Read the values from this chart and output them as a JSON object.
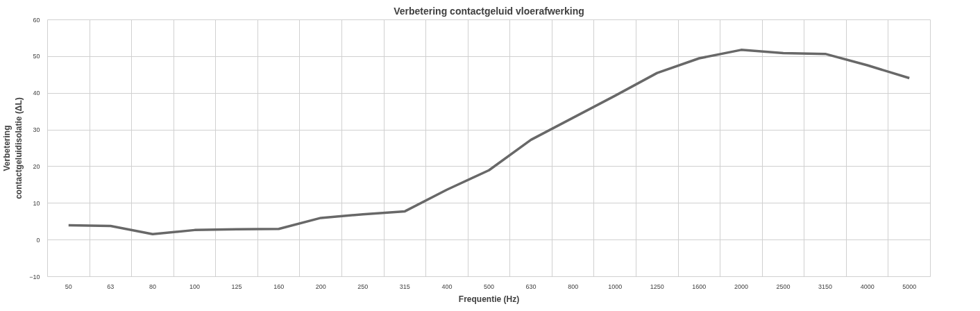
{
  "chart_data": {
    "type": "line",
    "title": "Verbetering contactgeluid vloerafwerking",
    "xlabel": "Frequentie (Hz)",
    "ylabel": "Verbetering contactgeluidisolatie (ΔL)",
    "categories": [
      "50",
      "63",
      "80",
      "100",
      "125",
      "160",
      "200",
      "250",
      "315",
      "400",
      "500",
      "630",
      "800",
      "1000",
      "1250",
      "1600",
      "2000",
      "2500",
      "3150",
      "4000",
      "5000"
    ],
    "series": [
      {
        "color": "#686868",
        "values": [
          4.0,
          3.8,
          1.6,
          2.7,
          2.9,
          3.0,
          6.0,
          7.0,
          7.8,
          13.7,
          19.0,
          27.3,
          33.3,
          39.3,
          45.5,
          49.5,
          51.8,
          50.9,
          50.7,
          47.6,
          44.1
        ]
      }
    ],
    "ylim": [
      -10,
      60
    ],
    "yticks": [
      -10,
      0,
      10,
      20,
      30,
      40,
      50,
      60
    ],
    "grid": true,
    "marker": "none",
    "line_style": "solid"
  }
}
